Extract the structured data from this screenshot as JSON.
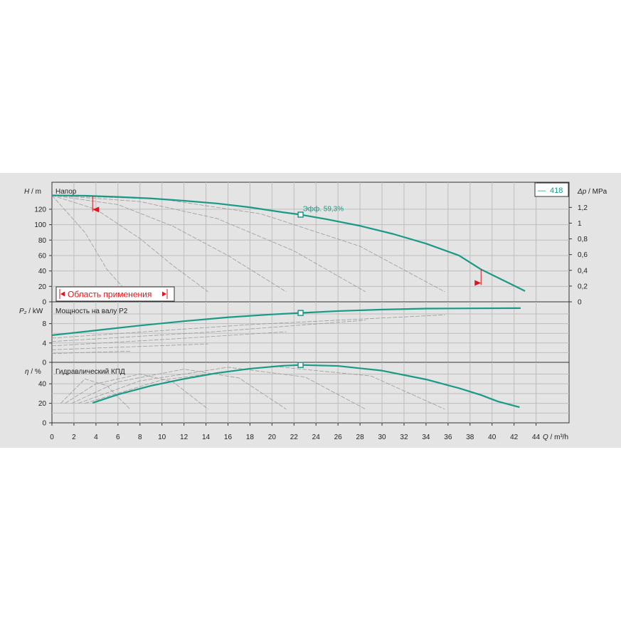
{
  "chart_data": {
    "type": "line",
    "colors": {
      "background": "#e4e4e4",
      "grid": "#bdbdbd",
      "curve": "#1a9a86",
      "thin_curve": "#9a9a9a",
      "application_range": "#e0151b"
    },
    "x_axis": {
      "label_var": "Q",
      "label_unit": " / m³/h",
      "range": [
        0,
        47
      ],
      "ticks": [
        0,
        2,
        4,
        6,
        8,
        10,
        12,
        14,
        16,
        18,
        20,
        22,
        24,
        26,
        28,
        30,
        32,
        34,
        36,
        38,
        40,
        42,
        44
      ]
    },
    "head_panel": {
      "title": "Напор",
      "y_label_var": "H",
      "y_label_unit": " / m",
      "y_range": [
        0,
        155
      ],
      "y_ticks": [
        0,
        20,
        40,
        60,
        80,
        100,
        120
      ],
      "right_axis": {
        "label_var": "Δp",
        "label_unit": " / MPa",
        "range": [
          0,
          1.52
        ],
        "ticks": [
          0,
          0.2,
          0.4,
          0.6,
          0.8,
          1,
          1.2
        ],
        "tick_labels": [
          "0",
          "0,2",
          "0,4",
          "0,6",
          "0,8",
          "1",
          "1,2"
        ]
      },
      "legend": {
        "line_symbol": "—",
        "label": "418"
      },
      "operating_point": {
        "x": 22.6,
        "y": 113,
        "label": "Эфф.  59,3%"
      },
      "application_range": {
        "label": "Область применения",
        "q_min": 3.7,
        "q_max": 39.0
      },
      "series": [
        {
          "name": "418",
          "x": [
            0,
            3,
            6,
            9,
            12,
            15,
            18,
            21,
            22.6,
            25,
            28,
            31,
            34,
            37,
            39,
            41,
            43
          ],
          "y": [
            138,
            137.5,
            136,
            134,
            131,
            127.5,
            122.5,
            116,
            113,
            107,
            98.5,
            88,
            75.5,
            60,
            42,
            28,
            14
          ]
        }
      ],
      "iso_curves": [
        {
          "x": [
            0,
            3,
            5,
            7
          ],
          "y": [
            138,
            90,
            42,
            10
          ]
        },
        {
          "x": [
            0,
            4,
            8,
            11,
            14.2
          ],
          "y": [
            138,
            120,
            82,
            47,
            13
          ]
        },
        {
          "x": [
            0,
            6,
            11,
            16,
            21.3
          ],
          "y": [
            138,
            126,
            98,
            60,
            13
          ]
        },
        {
          "x": [
            0,
            8,
            15,
            22,
            28.5
          ],
          "y": [
            138,
            130,
            108,
            66,
            13
          ]
        },
        {
          "x": [
            0,
            10,
            19,
            28,
            35.7
          ],
          "y": [
            138,
            133,
            114,
            72,
            13
          ]
        }
      ]
    },
    "power_panel": {
      "title": "Мощность на валу P2",
      "y_label_var": "P₂",
      "y_label_unit": " / kW",
      "y_range": [
        0,
        12.5
      ],
      "y_ticks": [
        0,
        4,
        8
      ],
      "intermediate_ticks": [
        2,
        6,
        10
      ],
      "operating_point": {
        "x": 22.6,
        "y": 10.2
      },
      "series": [
        {
          "name": "418",
          "x": [
            0,
            4,
            8,
            12,
            16,
            20,
            22.6,
            26,
            30,
            34,
            38,
            42.6
          ],
          "y": [
            5.6,
            6.6,
            7.6,
            8.5,
            9.3,
            9.9,
            10.2,
            10.6,
            10.9,
            11.1,
            11.15,
            11.2
          ]
        }
      ],
      "iso_curves": [
        {
          "x": [
            0,
            4,
            7.1
          ],
          "y": [
            1.8,
            2.1,
            2.3
          ]
        },
        {
          "x": [
            0,
            7,
            14.2
          ],
          "y": [
            2.6,
            3.2,
            3.8
          ]
        },
        {
          "x": [
            0,
            10,
            21.3
          ],
          "y": [
            3.4,
            4.7,
            6.3
          ]
        },
        {
          "x": [
            0,
            14,
            28.5
          ],
          "y": [
            4.3,
            6.2,
            8.7
          ]
        },
        {
          "x": [
            0,
            18,
            35.7
          ],
          "y": [
            5.0,
            7.8,
            9.8
          ]
        }
      ]
    },
    "efficiency_panel": {
      "title": "Гидравлический КПД",
      "y_label_var": "η",
      "y_label_unit": " / %",
      "y_range": [
        0,
        62
      ],
      "y_ticks": [
        0,
        20,
        40
      ],
      "intermediate_ticks": [
        10,
        30,
        50
      ],
      "operating_point": {
        "x": 22.6,
        "y": 59.3
      },
      "series": [
        {
          "name": "418",
          "x": [
            3.7,
            6,
            9,
            12,
            15,
            18,
            21,
            22.6,
            26,
            30,
            34,
            37,
            39,
            40.5,
            42.5
          ],
          "y": [
            20.5,
            29,
            38,
            45,
            51,
            55.5,
            58.5,
            59.3,
            58.3,
            53.5,
            44.5,
            35.5,
            28.5,
            22,
            16
          ]
        }
      ],
      "iso_curves": [
        {
          "x": [
            0.8,
            3,
            5,
            7.1
          ],
          "y": [
            20,
            45,
            38,
            14
          ]
        },
        {
          "x": [
            1.2,
            4,
            8,
            11,
            14.2
          ],
          "y": [
            20,
            40,
            50,
            42,
            14
          ]
        },
        {
          "x": [
            1.8,
            6,
            12,
            17,
            21.3
          ],
          "y": [
            20,
            42,
            55,
            46,
            14
          ]
        },
        {
          "x": [
            2.4,
            8,
            16,
            23,
            28.5
          ],
          "y": [
            20,
            43,
            57,
            47,
            14
          ]
        },
        {
          "x": [
            3,
            10,
            20,
            29,
            35.7
          ],
          "y": [
            20,
            44,
            58,
            48,
            14
          ]
        }
      ]
    }
  }
}
